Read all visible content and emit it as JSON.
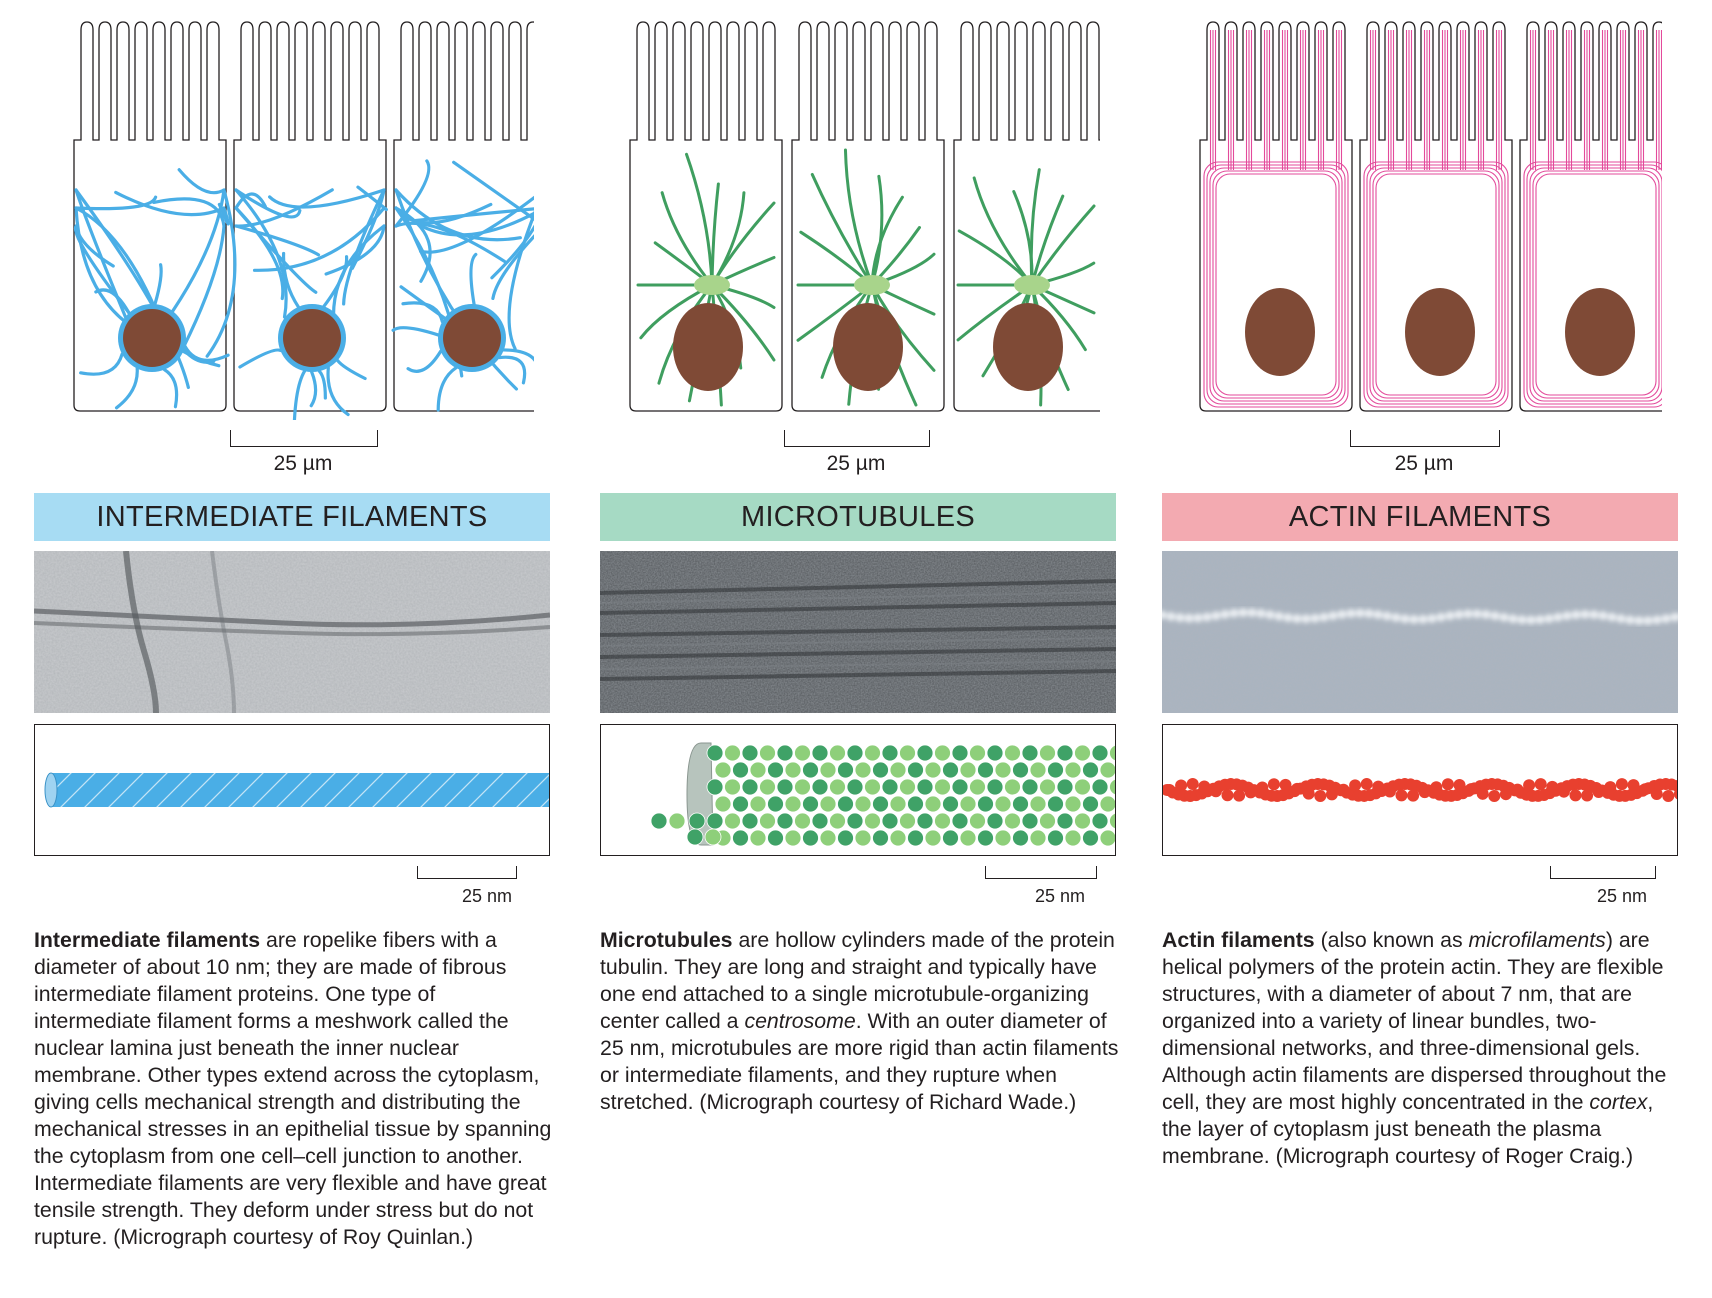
{
  "scale_bars": {
    "cell_scale": "25 µm",
    "filament_scale": "25 nm"
  },
  "colors": {
    "intermediate_filament": "#4aaee6",
    "microtubule": "#3f9e5f",
    "centrosome": "#a8d48b",
    "actin": "#e34a9b",
    "nucleus": "#7f4a36",
    "intermediate_banner": "#a7dcf3",
    "microtubule_banner": "#a6dac4",
    "actin_banner": "#f3aab1",
    "actin_model": "#e8402f",
    "tubulin_dark": "#3fa267",
    "tubulin_light": "#8ecf7a"
  },
  "intermediate": {
    "title": "INTERMEDIATE FILAMENTS",
    "desc_bold": "Intermediate filaments",
    "desc_text": " are ropelike fibers with a diameter of about 10 nm; they are made of fibrous intermediate filament proteins. One type of intermediate filament forms a meshwork called the nuclear lamina just beneath the inner nuclear membrane. Other types extend across the cytoplasm, giving cells mechanical strength and distributing the mechanical stresses in an epithelial tissue by spanning the cytoplasm from one cell–cell junction to another. Intermediate filaments are very flexible and have great tensile strength. They deform under stress but do not rupture. (Micrograph courtesy of Roy Quinlan.)"
  },
  "microtubules": {
    "title": "MICROTUBULES",
    "desc_bold": "Microtubules",
    "desc_a": " are hollow cylinders made of the protein tubulin. They are long and straight and typically have one end attached to a single microtubule-organizing center called a ",
    "desc_italic": "centrosome",
    "desc_b": ". With an outer diameter of 25 nm, microtubules are more rigid than actin filaments or intermediate filaments, and they rupture when stretched. (Micrograph courtesy of Richard Wade.)"
  },
  "actin": {
    "title": "ACTIN FILAMENTS",
    "desc_bold": "Actin filaments",
    "desc_a": " (also known as ",
    "desc_italic1": "microfilaments",
    "desc_b": ") are helical polymers of the protein actin. They are flexible structures, with a diameter of about 7 nm, that are organized into a variety of linear bundles, two-dimensional networks, and three-dimensional gels. Although actin filaments are dispersed throughout the cell, they are most highly concentrated in the ",
    "desc_italic2": "cortex",
    "desc_c": ", the layer of cytoplasm just beneath the plasma membrane. (Micrograph courtesy of Roger Craig.)"
  }
}
